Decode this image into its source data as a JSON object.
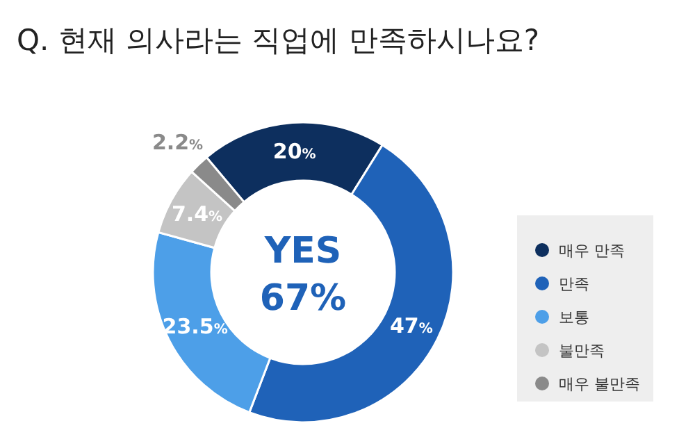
{
  "chart_data": {
    "type": "donut",
    "title": "Q. 현재 의사라는 직업에 만족하시나요?",
    "categories": [
      "매우 만족",
      "만족",
      "보통",
      "불만족",
      "매우 불만족"
    ],
    "values": [
      20,
      47,
      23.5,
      7.4,
      2.2
    ],
    "colors": [
      "#0d2f5e",
      "#1f62b8",
      "#4d9fe8",
      "#c4c4c4",
      "#8a8a8a"
    ],
    "value_labels": [
      "20%",
      "47%",
      "23.5%",
      "7.4%",
      "2.2%"
    ],
    "annotations": [
      "YES",
      "67%"
    ],
    "legend": "right"
  }
}
